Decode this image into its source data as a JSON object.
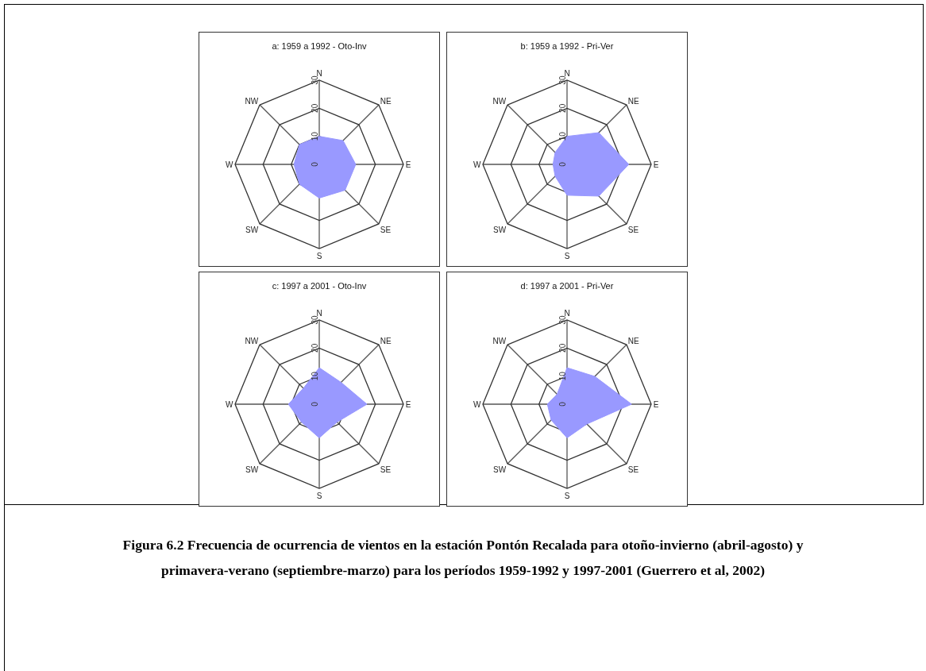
{
  "chart_data": [
    {
      "type": "radar",
      "title": "a: 1959 a 1992 - Oto-Inv",
      "categories": [
        "N",
        "NE",
        "E",
        "SE",
        "S",
        "SW",
        "W",
        "NW"
      ],
      "ylim": [
        0,
        30
      ],
      "yticks": [
        0,
        10,
        20,
        30
      ],
      "series": [
        {
          "color": "#9999ff",
          "values": [
            10,
            12,
            13,
            13,
            12,
            10,
            9,
            10
          ]
        }
      ]
    },
    {
      "type": "radar",
      "title": "b: 1959 a 1992 - Pri-Ver",
      "categories": [
        "N",
        "NE",
        "E",
        "SE",
        "S",
        "SW",
        "W",
        "NW"
      ],
      "ylim": [
        0,
        30
      ],
      "yticks": [
        0,
        10,
        20,
        30
      ],
      "series": [
        {
          "color": "#9999ff",
          "values": [
            10,
            16,
            22,
            16,
            11,
            6,
            5,
            6
          ]
        }
      ]
    },
    {
      "type": "radar",
      "title": "c: 1997 a 2001 - Oto-Inv",
      "categories": [
        "N",
        "NE",
        "E",
        "SE",
        "S",
        "SW",
        "W",
        "NW"
      ],
      "ylim": [
        0,
        30
      ],
      "yticks": [
        0,
        10,
        20,
        30
      ],
      "series": [
        {
          "color": "#9999ff",
          "values": [
            13,
            11,
            17,
            9,
            12,
            9,
            11,
            8
          ]
        }
      ]
    },
    {
      "type": "radar",
      "title": "d: 1997 a 2001 - Pri-Ver",
      "categories": [
        "N",
        "NE",
        "E",
        "SE",
        "S",
        "SW",
        "W",
        "NW"
      ],
      "ylim": [
        0,
        30
      ],
      "yticks": [
        0,
        10,
        20,
        30
      ],
      "series": [
        {
          "color": "#9999ff",
          "values": [
            13,
            14,
            23,
            10,
            12,
            8,
            7,
            5
          ]
        }
      ],
      "annotations": [
        "Figura 6.2  Frecuencia de ocurrencia de vientos en la estación Pontón Recalada para otoño-invierno (abril-agosto) y primavera-verano (septiembre-marzo) para los períodos 1959-1992 y 1997-2001 (Guerrero et al, 2002)"
      ]
    }
  ]
}
